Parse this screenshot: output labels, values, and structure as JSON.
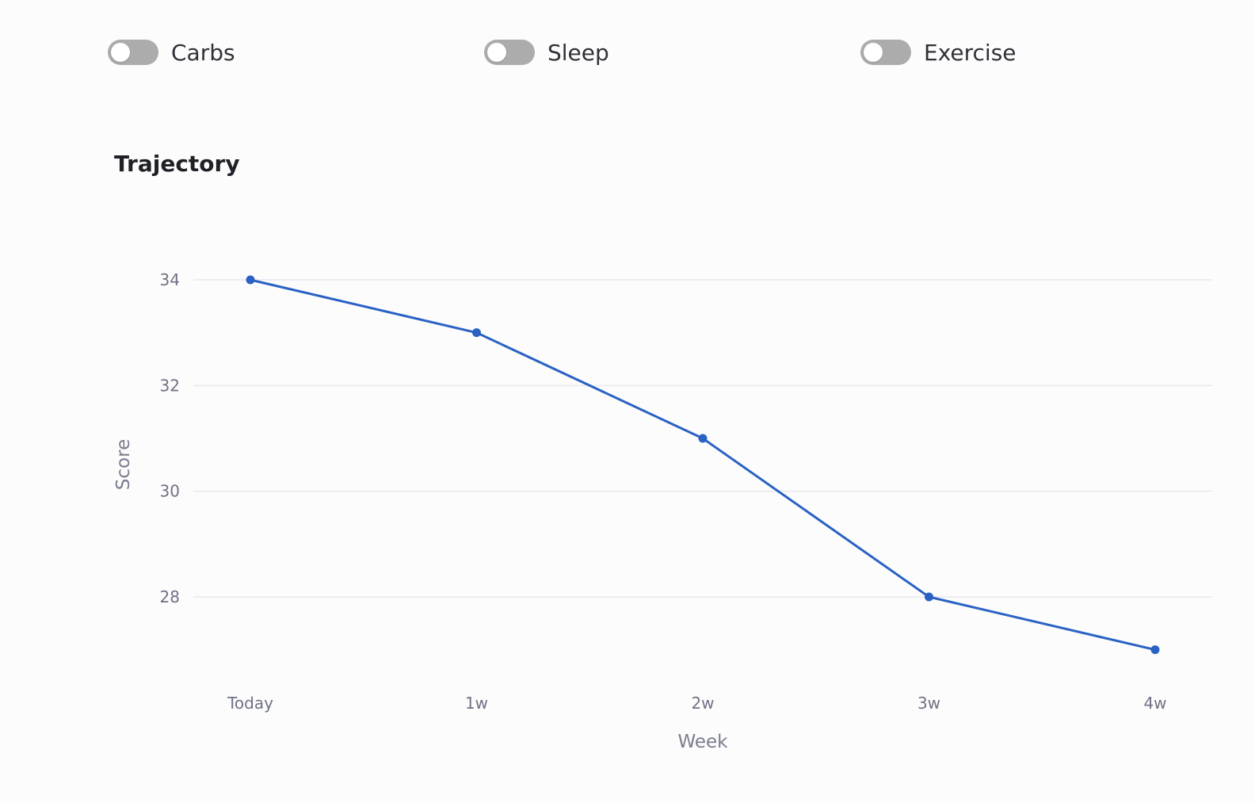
{
  "toggles": [
    {
      "label": "Carbs",
      "on": false
    },
    {
      "label": "Sleep",
      "on": false
    },
    {
      "label": "Exercise",
      "on": false
    }
  ],
  "chart_data": {
    "type": "line",
    "title": "Trajectory",
    "xlabel": "Week",
    "ylabel": "Score",
    "categories": [
      "Today",
      "1w",
      "2w",
      "3w",
      "4w"
    ],
    "series": [
      {
        "values": [
          34,
          33,
          31,
          28,
          27
        ]
      }
    ],
    "yticks": [
      28,
      30,
      32,
      34
    ],
    "grid": true,
    "colors": {
      "line": "#2a62c4",
      "grid": "#e8e8f0"
    }
  }
}
